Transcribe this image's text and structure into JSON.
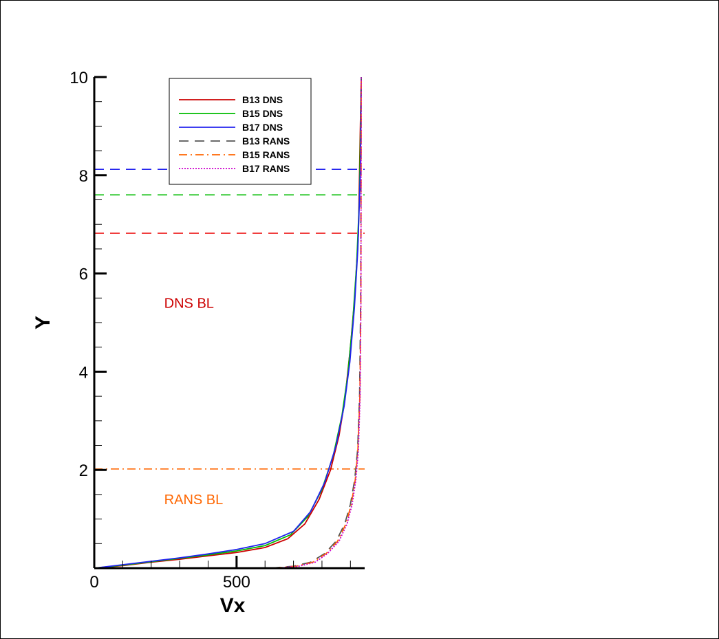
{
  "chart_data": {
    "type": "line",
    "xlabel": "Vx",
    "ylabel": "Y",
    "xlim": [
      0,
      950
    ],
    "ylim": [
      0,
      10
    ],
    "x_ticks": [
      0,
      500
    ],
    "x_tick_labels": [
      "0",
      "500"
    ],
    "y_ticks": [
      2,
      4,
      6,
      8,
      10
    ],
    "y_tick_labels": [
      "2",
      "4",
      "6",
      "8",
      "10"
    ],
    "grid": false,
    "legend_position": "top-center",
    "series": [
      {
        "name": "B13 DNS",
        "color": "#cc0000",
        "dash": "solid",
        "x": [
          0,
          100,
          200,
          300,
          400,
          500,
          600,
          680,
          740,
          790,
          830,
          860,
          880,
          900,
          915,
          928,
          938
        ],
        "y": [
          0,
          0.05,
          0.12,
          0.18,
          0.25,
          0.32,
          0.42,
          0.6,
          0.9,
          1.4,
          2.0,
          2.7,
          3.4,
          4.5,
          5.5,
          6.8,
          10
        ]
      },
      {
        "name": "B15 DNS",
        "color": "#00bb00",
        "dash": "solid",
        "x": [
          0,
          100,
          200,
          300,
          400,
          500,
          600,
          690,
          750,
          800,
          840,
          870,
          890,
          908,
          922,
          932,
          938
        ],
        "y": [
          0,
          0.06,
          0.13,
          0.2,
          0.27,
          0.35,
          0.46,
          0.68,
          1.05,
          1.6,
          2.3,
          3.1,
          3.9,
          5.0,
          6.2,
          7.6,
          10
        ]
      },
      {
        "name": "B17 DNS",
        "color": "#2222ee",
        "dash": "solid",
        "x": [
          0,
          100,
          200,
          300,
          400,
          500,
          600,
          700,
          760,
          810,
          850,
          878,
          898,
          914,
          926,
          935,
          938
        ],
        "y": [
          0,
          0.07,
          0.14,
          0.21,
          0.29,
          0.38,
          0.5,
          0.75,
          1.15,
          1.75,
          2.5,
          3.3,
          4.2,
          5.3,
          6.5,
          8.1,
          10
        ]
      },
      {
        "name": "B13 RANS",
        "color": "#555555",
        "dash": "dashed",
        "x": [
          620,
          700,
          760,
          810,
          850,
          880,
          900,
          915,
          925,
          932,
          936,
          938
        ],
        "y": [
          0,
          0.04,
          0.12,
          0.3,
          0.55,
          0.9,
          1.3,
          1.8,
          2.4,
          3.5,
          5.5,
          10
        ]
      },
      {
        "name": "B15 RANS",
        "color": "#ff6600",
        "dash": "dashdot",
        "x": [
          630,
          710,
          768,
          815,
          855,
          884,
          903,
          917,
          926,
          933,
          937,
          938
        ],
        "y": [
          0,
          0.04,
          0.12,
          0.3,
          0.55,
          0.9,
          1.3,
          1.8,
          2.4,
          3.5,
          5.5,
          10
        ]
      },
      {
        "name": "B17 RANS",
        "color": "#cc00cc",
        "dash": "dotted",
        "x": [
          640,
          720,
          776,
          820,
          860,
          888,
          906,
          919,
          928,
          934,
          937,
          938
        ],
        "y": [
          0,
          0.04,
          0.12,
          0.3,
          0.55,
          0.9,
          1.3,
          1.8,
          2.4,
          3.5,
          5.5,
          10
        ]
      }
    ],
    "reference_lines": [
      {
        "y": 8.12,
        "color": "#2222ee",
        "dash": "dashed"
      },
      {
        "y": 7.6,
        "color": "#00bb00",
        "dash": "dashed"
      },
      {
        "y": 6.82,
        "color": "#ee2222",
        "dash": "dashed"
      },
      {
        "y": 2.02,
        "color": "#ff6600",
        "dash": "dashdot"
      }
    ],
    "annotations": [
      {
        "text": "DNS BL",
        "color": "#cc0000",
        "x": 415,
        "y": 5.3
      },
      {
        "text": "RANS BL",
        "color": "#ff6600",
        "x": 415,
        "y": 1.3
      }
    ]
  }
}
